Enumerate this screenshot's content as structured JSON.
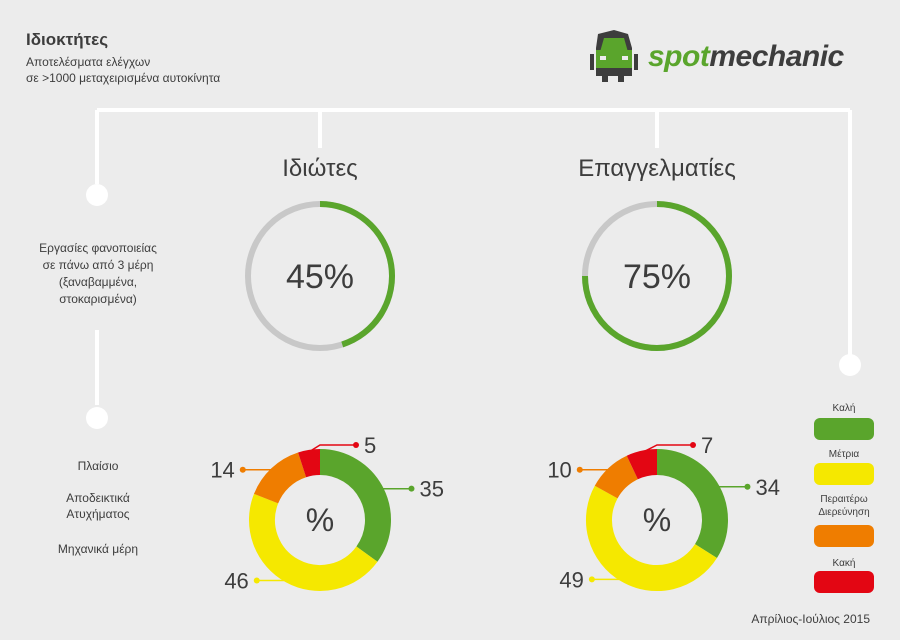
{
  "header": {
    "title": "Ιδιοκτήτες",
    "subtitle_line1": "Αποτελέσματα ελέγχων",
    "subtitle_line2": "σε >1000 μεταχειρισμένα αυτοκίνητα"
  },
  "logo": {
    "part1": "spot",
    "part2": "mechanic"
  },
  "side_labels": {
    "bodywork_line1": "Εργασίες φανοποιείας",
    "bodywork_line2": "σε πάνω από 3 μέρη",
    "bodywork_line3": "(ξαναβαμμένα,",
    "bodywork_line4": "στοκαρισμένα)"
  },
  "categories": {
    "frame": "Πλαίσιο",
    "accident_line1": "Αποδεικτικά",
    "accident_line2": "Ατυχήματος",
    "mechanical": "Μηχανικά μέρη"
  },
  "legend": {
    "good": "Καλή",
    "medium": "Μέτρια",
    "further_line1": "Περαιτέρω",
    "further_line2": "Διερεύνηση",
    "bad": "Κακή"
  },
  "footer": "Απρίλιος-Ιούλιος 2015",
  "colors": {
    "good": "#5aa52c",
    "medium": "#f5e800",
    "further": "#ef7d00",
    "bad": "#e30613",
    "track": "#c8c8c8",
    "line": "#ffffff"
  },
  "chart_data": [
    {
      "type": "pie",
      "title": "Ιδιώτες",
      "value": 45,
      "value_label": "45%",
      "categories": [
        "Εργασίες φανοποιείας σε πάνω από 3 μέρη"
      ],
      "values": [
        45
      ]
    },
    {
      "type": "pie",
      "title": "Επαγγελματίες",
      "value": 75,
      "value_label": "75%",
      "categories": [
        "Εργασίες φανοποιείας σε πάνω από 3 μέρη"
      ],
      "values": [
        75
      ]
    },
    {
      "type": "pie",
      "title": "Ιδιώτες",
      "center_label": "%",
      "categories": [
        "Καλή",
        "Μέτρια",
        "Περαιτέρω Διερεύνηση",
        "Κακή"
      ],
      "values": [
        35,
        46,
        14,
        5
      ]
    },
    {
      "type": "pie",
      "title": "Επαγγελματίες",
      "center_label": "%",
      "categories": [
        "Καλή",
        "Μέτρια",
        "Περαιτέρω Διερεύνηση",
        "Κακή"
      ],
      "values": [
        34,
        49,
        10,
        7
      ]
    }
  ]
}
